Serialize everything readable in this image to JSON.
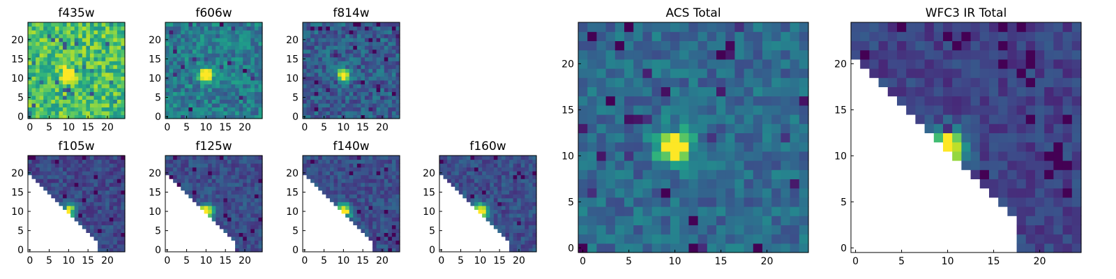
{
  "colormap": {
    "name": "viridis",
    "stops": [
      "#440154",
      "#482878",
      "#3e4989",
      "#31688e",
      "#26828e",
      "#1f9e89",
      "#35b779",
      "#6ece58",
      "#b5de2b",
      "#fde725"
    ]
  },
  "axis_color": "#000000",
  "chart_data": [
    {
      "type": "heatmap",
      "title": "f435w",
      "grid_size": 25,
      "xlim": [
        0,
        24
      ],
      "ylim": [
        0,
        24
      ],
      "x_ticks": [
        "0",
        "5",
        "10",
        "15",
        "20"
      ],
      "y_ticks": [
        "0",
        "5",
        "10",
        "15",
        "20"
      ],
      "background_level": 0.7,
      "noise": 0.2,
      "source": {
        "x": 10,
        "y": 11,
        "peak": 1.0,
        "sigma": 1.1
      },
      "masked_lower_left": false
    },
    {
      "type": "heatmap",
      "title": "f606w",
      "grid_size": 25,
      "xlim": [
        0,
        24
      ],
      "ylim": [
        0,
        24
      ],
      "x_ticks": [
        "0",
        "5",
        "10",
        "15",
        "20"
      ],
      "y_ticks": [
        "0",
        "5",
        "10",
        "15",
        "20"
      ],
      "background_level": 0.42,
      "noise": 0.16,
      "source": {
        "x": 10,
        "y": 11,
        "peak": 1.0,
        "sigma": 1.1
      },
      "masked_lower_left": false
    },
    {
      "type": "heatmap",
      "title": "f814w",
      "grid_size": 25,
      "xlim": [
        0,
        24
      ],
      "ylim": [
        0,
        24
      ],
      "x_ticks": [
        "0",
        "5",
        "10",
        "15",
        "20"
      ],
      "y_ticks": [
        "0",
        "5",
        "10",
        "15",
        "20"
      ],
      "background_level": 0.3,
      "noise": 0.15,
      "source": {
        "x": 10,
        "y": 11,
        "peak": 1.0,
        "sigma": 1.1
      },
      "masked_lower_left": false
    },
    {
      "type": "heatmap",
      "title": "f105w",
      "grid_size": 25,
      "xlim": [
        0,
        24
      ],
      "ylim": [
        0,
        24
      ],
      "x_ticks": [
        "0",
        "5",
        "10",
        "15",
        "20"
      ],
      "y_ticks": [
        "0",
        "5",
        "10",
        "15",
        "20"
      ],
      "background_level": 0.22,
      "noise": 0.1,
      "source": {
        "x": 10,
        "y": 10,
        "peak": 1.0,
        "sigma": 1.2
      },
      "masked_lower_left": true
    },
    {
      "type": "heatmap",
      "title": "f125w",
      "grid_size": 25,
      "xlim": [
        0,
        24
      ],
      "ylim": [
        0,
        24
      ],
      "x_ticks": [
        "0",
        "5",
        "10",
        "15",
        "20"
      ],
      "y_ticks": [
        "0",
        "5",
        "10",
        "15",
        "20"
      ],
      "background_level": 0.24,
      "noise": 0.1,
      "source": {
        "x": 10,
        "y": 10,
        "peak": 1.0,
        "sigma": 1.3
      },
      "masked_lower_left": true
    },
    {
      "type": "heatmap",
      "title": "f140w",
      "grid_size": 25,
      "xlim": [
        0,
        24
      ],
      "ylim": [
        0,
        24
      ],
      "x_ticks": [
        "0",
        "5",
        "10",
        "15",
        "20"
      ],
      "y_ticks": [
        "0",
        "5",
        "10",
        "15",
        "20"
      ],
      "background_level": 0.24,
      "noise": 0.1,
      "source": {
        "x": 10,
        "y": 10,
        "peak": 1.0,
        "sigma": 1.3
      },
      "masked_lower_left": true
    },
    {
      "type": "heatmap",
      "title": "f160w",
      "grid_size": 25,
      "xlim": [
        0,
        24
      ],
      "ylim": [
        0,
        24
      ],
      "x_ticks": [
        "0",
        "5",
        "10",
        "15",
        "20"
      ],
      "y_ticks": [
        "0",
        "5",
        "10",
        "15",
        "20"
      ],
      "background_level": 0.24,
      "noise": 0.1,
      "source": {
        "x": 10,
        "y": 10,
        "peak": 1.0,
        "sigma": 1.3
      },
      "masked_lower_left": true
    },
    {
      "type": "heatmap",
      "title": "ACS Total",
      "grid_size": 25,
      "xlim": [
        0,
        24
      ],
      "ylim": [
        0,
        24
      ],
      "x_ticks": [
        "0",
        "5",
        "10",
        "15",
        "20"
      ],
      "y_ticks": [
        "0",
        "5",
        "10",
        "15",
        "20"
      ],
      "background_level": 0.35,
      "noise": 0.12,
      "source": {
        "x": 10,
        "y": 11,
        "peak": 1.0,
        "sigma": 1.2
      },
      "masked_lower_left": false
    },
    {
      "type": "heatmap",
      "title": "WFC3 IR Total",
      "grid_size": 25,
      "xlim": [
        0,
        24
      ],
      "ylim": [
        0,
        24
      ],
      "x_ticks": [
        "0",
        "5",
        "10",
        "15",
        "20"
      ],
      "y_ticks": [
        "0",
        "5",
        "10",
        "15",
        "20"
      ],
      "background_level": 0.2,
      "noise": 0.09,
      "source": {
        "x": 10,
        "y": 11,
        "peak": 1.0,
        "sigma": 1.3
      },
      "masked_lower_left": true
    }
  ]
}
